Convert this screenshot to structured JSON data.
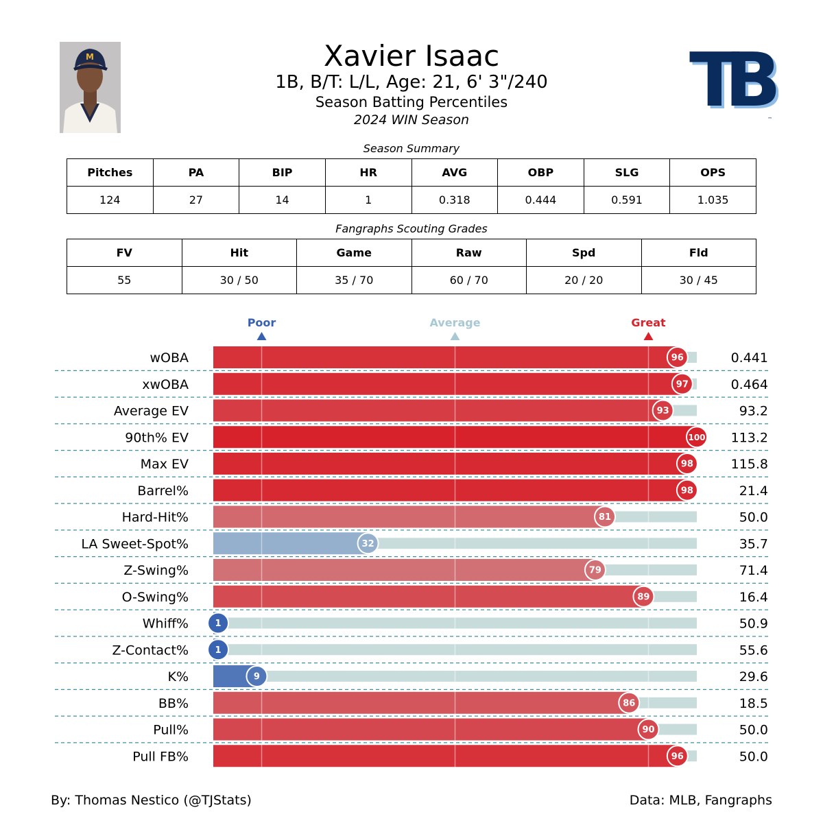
{
  "header": {
    "name": "Xavier Isaac",
    "bio": "1B, B/T: L/L, Age: 21, 6' 3\"/240",
    "subtitle": "Season Batting Percentiles",
    "season": "2024 WIN Season",
    "team_logo_text": "TB",
    "team_logo_tm": "™",
    "cap_logo_text": "M"
  },
  "summary": {
    "caption": "Season Summary",
    "headers": [
      "Pitches",
      "PA",
      "BIP",
      "HR",
      "AVG",
      "OBP",
      "SLG",
      "OPS"
    ],
    "values": [
      "124",
      "27",
      "14",
      "1",
      "0.318",
      "0.444",
      "0.591",
      "1.035"
    ]
  },
  "scouting": {
    "caption": "Fangraphs Scouting Grades",
    "headers": [
      "FV",
      "Hit",
      "Game",
      "Raw",
      "Spd",
      "Fld"
    ],
    "values": [
      "55",
      "30 / 50",
      "35 / 70",
      "60 / 70",
      "20 / 20",
      "30 / 45"
    ]
  },
  "chart_data": {
    "type": "bar",
    "orientation": "horizontal",
    "markers": [
      {
        "label": "Poor",
        "value": 10,
        "color": "#3761b0"
      },
      {
        "label": "Average",
        "value": 50,
        "color": "#a9c8d4"
      },
      {
        "label": "Great",
        "value": 90,
        "color": "#d8222b"
      }
    ],
    "xlim": [
      0,
      100
    ],
    "categories": [
      "wOBA",
      "xwOBA",
      "Average EV",
      "90th% EV",
      "Max EV",
      "Barrel%",
      "Hard-Hit%",
      "LA Sweet-Spot%",
      "Z-Swing%",
      "O-Swing%",
      "Whiff%",
      "Z-Contact%",
      "K%",
      "BB%",
      "Pull%",
      "Pull FB%"
    ],
    "percentiles": [
      96,
      97,
      93,
      100,
      98,
      98,
      81,
      32,
      79,
      89,
      1,
      1,
      9,
      86,
      90,
      96
    ],
    "percentile_labels": [
      "96",
      "97",
      "93",
      "100",
      "98",
      "98",
      "81",
      "32",
      "79",
      "89",
      "1",
      "1",
      "9",
      "86",
      "90",
      "96"
    ],
    "stat_values": [
      "0.441",
      "0.464",
      "93.2",
      "113.2",
      "115.8",
      "21.4",
      "50.0",
      "35.7",
      "71.4",
      "16.4",
      "50.9",
      "55.6",
      "29.6",
      "18.5",
      "50.0",
      "50.0"
    ],
    "colors": {
      "poor": "#3761b0",
      "average": "#c8dcdc",
      "great": "#d8222b",
      "track": "#c8dcdc",
      "separator": "#3d8fa0"
    }
  },
  "footer": {
    "credit": "By: Thomas Nestico (@TJStats)",
    "source": "Data: MLB, Fangraphs"
  }
}
